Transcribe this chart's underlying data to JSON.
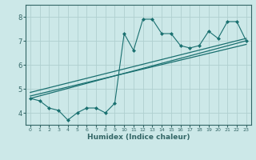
{
  "xlabel": "Humidex (Indice chaleur)",
  "ylabel": "",
  "bg_color": "#cce8e8",
  "grid_color": "#b0d0d0",
  "line_color": "#1a7070",
  "spine_color": "#336666",
  "xlim": [
    -0.5,
    23.5
  ],
  "ylim": [
    3.5,
    8.5
  ],
  "xticks": [
    0,
    1,
    2,
    3,
    4,
    5,
    6,
    7,
    8,
    9,
    10,
    11,
    12,
    13,
    14,
    15,
    16,
    17,
    18,
    19,
    20,
    21,
    22,
    23
  ],
  "yticks": [
    4,
    5,
    6,
    7,
    8
  ],
  "data_x": [
    0,
    1,
    2,
    3,
    4,
    5,
    6,
    7,
    8,
    9,
    10,
    11,
    12,
    13,
    14,
    15,
    16,
    17,
    18,
    19,
    20,
    21,
    22,
    23
  ],
  "line1_y": [
    4.6,
    4.5,
    4.2,
    4.1,
    3.7,
    4.0,
    4.2,
    4.2,
    4.0,
    4.4,
    7.3,
    6.6,
    7.9,
    7.9,
    7.3,
    7.3,
    6.8,
    6.7,
    6.8,
    7.4,
    7.1,
    7.8,
    7.8,
    7.0
  ],
  "trend1_x": [
    0,
    23
  ],
  "trend1_y": [
    4.6,
    7.0
  ],
  "trend2_x": [
    0,
    23
  ],
  "trend2_y": [
    4.85,
    7.1
  ],
  "trend3_x": [
    0,
    23
  ],
  "trend3_y": [
    4.7,
    6.85
  ]
}
